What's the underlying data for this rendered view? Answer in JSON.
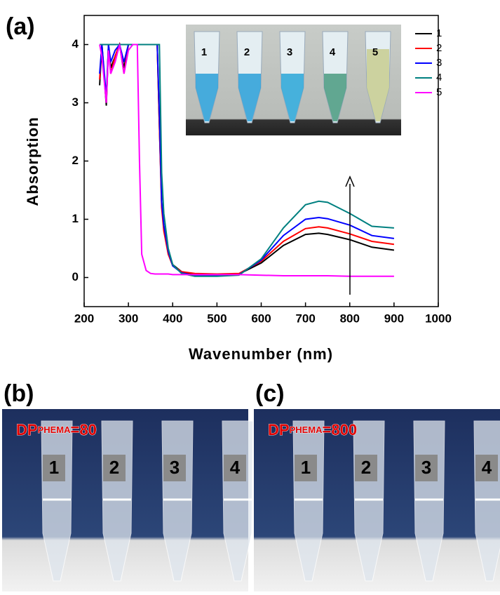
{
  "figure_label": "(a)",
  "chart_data": {
    "type": "line",
    "xlabel": "Wavenumber (nm)",
    "ylabel": "Absorption",
    "xlim": [
      200,
      1000
    ],
    "ylim": [
      -0.5,
      4.5
    ],
    "xticks": [
      200,
      300,
      400,
      500,
      600,
      700,
      800,
      900,
      1000
    ],
    "yticks": [
      0,
      1,
      2,
      3,
      4
    ],
    "legend": "upper right",
    "x": [
      235,
      240,
      250,
      255,
      260,
      270,
      280,
      290,
      300,
      310,
      320,
      325,
      330,
      340,
      350,
      360,
      365,
      370,
      375,
      380,
      390,
      400,
      420,
      450,
      500,
      550,
      600,
      650,
      700,
      730,
      750,
      800,
      850,
      900
    ],
    "series": [
      {
        "name": "1",
        "color": "#000000",
        "values": [
          3.3,
          4,
          2.95,
          4,
          3.6,
          3.8,
          4,
          3.6,
          4,
          4,
          4,
          4,
          4,
          4,
          4,
          4,
          4,
          2.6,
          1.3,
          0.85,
          0.45,
          0.22,
          0.1,
          0.05,
          0.05,
          0.06,
          0.25,
          0.55,
          0.74,
          0.76,
          0.74,
          0.65,
          0.52,
          0.47
        ]
      },
      {
        "name": "2",
        "color": "#ff0000",
        "values": [
          3.4,
          4,
          3.0,
          4,
          3.5,
          3.8,
          4,
          3.5,
          4,
          4,
          4,
          4,
          4,
          4,
          4,
          4,
          4,
          2.6,
          1.2,
          0.8,
          0.4,
          0.2,
          0.1,
          0.07,
          0.06,
          0.07,
          0.28,
          0.62,
          0.84,
          0.87,
          0.85,
          0.75,
          0.62,
          0.57
        ]
      },
      {
        "name": "3",
        "color": "#0000ff",
        "values": [
          3.5,
          4,
          3.1,
          4,
          3.7,
          3.9,
          4,
          3.7,
          4,
          4,
          4,
          4,
          4,
          4,
          4,
          4,
          4,
          2.8,
          1.3,
          0.9,
          0.45,
          0.2,
          0.08,
          0.03,
          0.03,
          0.05,
          0.3,
          0.72,
          1.0,
          1.03,
          1.01,
          0.9,
          0.72,
          0.67
        ]
      },
      {
        "name": "4",
        "color": "#008080",
        "values": [
          4,
          4,
          4,
          4,
          4,
          4,
          4,
          4,
          4,
          4,
          4,
          4,
          4,
          4,
          4,
          4,
          4,
          4,
          1.8,
          1.1,
          0.5,
          0.22,
          0.07,
          0.02,
          0.02,
          0.04,
          0.32,
          0.85,
          1.25,
          1.31,
          1.29,
          1.1,
          0.88,
          0.85
        ]
      },
      {
        "name": "5",
        "color": "#ff00ff",
        "values": [
          4,
          3.8,
          3.0,
          3.9,
          3.5,
          3.7,
          4,
          3.5,
          3.9,
          4,
          4,
          2.0,
          0.4,
          0.12,
          0.07,
          0.06,
          0.06,
          0.06,
          0.06,
          0.06,
          0.06,
          0.05,
          0.05,
          0.05,
          0.05,
          0.05,
          0.04,
          0.03,
          0.03,
          0.03,
          0.03,
          0.02,
          0.02,
          0.02
        ]
      }
    ],
    "inset_labels": [
      "1",
      "2",
      "3",
      "4",
      "5"
    ]
  },
  "panels": [
    {
      "label": "(b)",
      "dp": "DP",
      "sub": "PHEMA",
      "eq": "=80",
      "tubes": [
        "1",
        "2",
        "3",
        "4"
      ]
    },
    {
      "label": "(c)",
      "dp": "DP",
      "sub": "PHEMA",
      "eq": "=800",
      "tubes": [
        "1",
        "2",
        "3",
        "4"
      ]
    }
  ]
}
